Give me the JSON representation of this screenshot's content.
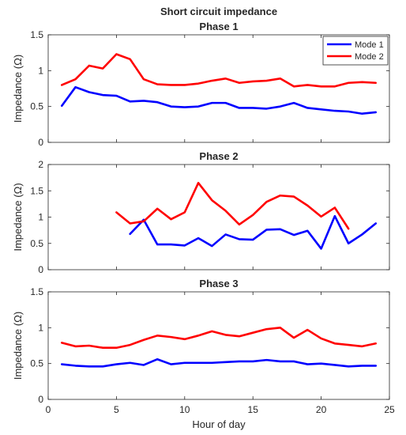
{
  "figure": {
    "title": "Short circuit impedance"
  },
  "chart_data": [
    {
      "type": "line",
      "title": "Phase 1",
      "xlabel": "",
      "ylabel": "Impedance (Ω)",
      "xlim": [
        0,
        25
      ],
      "ylim": [
        0,
        1.5
      ],
      "xticks": [
        0,
        5,
        10,
        15,
        20,
        25
      ],
      "yticks": [
        0,
        0.5,
        1,
        1.5
      ],
      "show_xticklabels": false,
      "grid": false,
      "legend": "top-right",
      "series": [
        {
          "name": "Mode 1",
          "color": "#0000ff",
          "x": [
            1,
            2,
            3,
            4,
            5,
            6,
            7,
            8,
            9,
            10,
            11,
            12,
            13,
            14,
            15,
            16,
            17,
            18,
            19,
            20,
            21,
            22,
            23,
            24
          ],
          "y": [
            0.51,
            0.77,
            0.7,
            0.66,
            0.65,
            0.57,
            0.58,
            0.56,
            0.5,
            0.49,
            0.5,
            0.55,
            0.55,
            0.48,
            0.48,
            0.47,
            0.5,
            0.55,
            0.48,
            0.46,
            0.44,
            0.43,
            0.4,
            0.42
          ]
        },
        {
          "name": "Mode 2",
          "color": "#ff0000",
          "x": [
            1,
            2,
            3,
            4,
            5,
            6,
            7,
            8,
            9,
            10,
            11,
            12,
            13,
            14,
            15,
            16,
            17,
            18,
            19,
            20,
            21,
            22,
            23,
            24
          ],
          "y": [
            0.8,
            0.88,
            1.07,
            1.03,
            1.23,
            1.16,
            0.88,
            0.81,
            0.8,
            0.8,
            0.82,
            0.86,
            0.89,
            0.83,
            0.85,
            0.86,
            0.89,
            0.78,
            0.8,
            0.78,
            0.78,
            0.83,
            0.84,
            0.83
          ]
        }
      ]
    },
    {
      "type": "line",
      "title": "Phase 2",
      "xlabel": "",
      "ylabel": "Impedance (Ω)",
      "xlim": [
        0,
        25
      ],
      "ylim": [
        0,
        2
      ],
      "xticks": [
        0,
        5,
        10,
        15,
        20,
        25
      ],
      "yticks": [
        0,
        0.5,
        1,
        1.5,
        2
      ],
      "show_xticklabels": false,
      "grid": false,
      "series": [
        {
          "name": "Mode 1",
          "color": "#0000ff",
          "x": [
            6,
            7,
            8,
            9,
            10,
            11,
            12,
            13,
            14,
            15,
            16,
            17,
            18,
            19,
            20,
            21,
            22,
            23,
            24
          ],
          "y": [
            0.68,
            0.95,
            0.48,
            0.48,
            0.46,
            0.6,
            0.45,
            0.67,
            0.58,
            0.57,
            0.76,
            0.77,
            0.66,
            0.74,
            0.4,
            1.02,
            0.5,
            0.67,
            0.88
          ]
        },
        {
          "name": "Mode 2",
          "color": "#ff0000",
          "x": [
            5,
            6,
            7,
            8,
            9,
            10,
            11,
            12,
            13,
            14,
            15,
            16,
            17,
            18,
            19,
            20,
            21,
            22
          ],
          "y": [
            1.09,
            0.88,
            0.92,
            1.16,
            0.96,
            1.09,
            1.65,
            1.32,
            1.12,
            0.86,
            1.04,
            1.29,
            1.41,
            1.39,
            1.22,
            1.01,
            1.18,
            0.78
          ]
        }
      ]
    },
    {
      "type": "line",
      "title": "Phase 3",
      "xlabel": "Hour of day",
      "ylabel": "Impedance (Ω)",
      "xlim": [
        0,
        25
      ],
      "ylim": [
        0,
        1.5
      ],
      "xticks": [
        0,
        5,
        10,
        15,
        20,
        25
      ],
      "yticks": [
        0,
        0.5,
        1,
        1.5
      ],
      "show_xticklabels": true,
      "grid": false,
      "series": [
        {
          "name": "Mode 1",
          "color": "#0000ff",
          "x": [
            1,
            2,
            3,
            4,
            5,
            6,
            7,
            8,
            9,
            10,
            11,
            12,
            13,
            14,
            15,
            16,
            17,
            18,
            19,
            20,
            21,
            22,
            23,
            24
          ],
          "y": [
            0.49,
            0.47,
            0.46,
            0.46,
            0.49,
            0.51,
            0.48,
            0.56,
            0.49,
            0.51,
            0.51,
            0.51,
            0.52,
            0.53,
            0.53,
            0.55,
            0.53,
            0.53,
            0.49,
            0.5,
            0.48,
            0.46,
            0.47,
            0.47
          ]
        },
        {
          "name": "Mode 2",
          "color": "#ff0000",
          "x": [
            1,
            2,
            3,
            4,
            5,
            6,
            7,
            8,
            9,
            10,
            11,
            12,
            13,
            14,
            15,
            16,
            17,
            18,
            19,
            20,
            21,
            22,
            23,
            24
          ],
          "y": [
            0.79,
            0.74,
            0.75,
            0.72,
            0.72,
            0.76,
            0.83,
            0.89,
            0.87,
            0.84,
            0.89,
            0.95,
            0.9,
            0.88,
            0.93,
            0.98,
            1.0,
            0.86,
            0.97,
            0.85,
            0.78,
            0.76,
            0.74,
            0.78
          ]
        }
      ]
    }
  ]
}
